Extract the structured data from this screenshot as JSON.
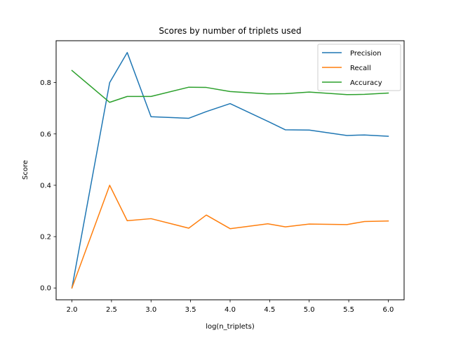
{
  "chart_data": {
    "type": "line",
    "title": "Scores by number of triplets used",
    "xlabel": "log(n_triplets)",
    "ylabel": "Score",
    "xlim": [
      1.8,
      6.2
    ],
    "ylim": [
      -0.046,
      0.963
    ],
    "xticks": [
      "2.0",
      "2.5",
      "3.0",
      "3.5",
      "4.0",
      "4.5",
      "5.0",
      "5.5",
      "6.0"
    ],
    "yticks": [
      "0.0",
      "0.2",
      "0.4",
      "0.6",
      "0.8"
    ],
    "grid": false,
    "legend_position": "top-right",
    "x": [
      2.0,
      2.477,
      2.699,
      3.0,
      3.477,
      3.699,
      4.0,
      4.477,
      4.699,
      5.0,
      5.477,
      5.699,
      6.0
    ],
    "series": [
      {
        "name": "Precision",
        "color": "#1f77b4",
        "values": [
          0.0,
          0.8,
          0.917,
          0.667,
          0.661,
          0.687,
          0.718,
          0.649,
          0.616,
          0.615,
          0.594,
          0.596,
          0.591
        ]
      },
      {
        "name": "Recall",
        "color": "#ff7f0e",
        "values": [
          0.0,
          0.4,
          0.262,
          0.27,
          0.233,
          0.284,
          0.231,
          0.25,
          0.238,
          0.249,
          0.247,
          0.259,
          0.261
        ]
      },
      {
        "name": "Accuracy",
        "color": "#2ca02c",
        "values": [
          0.847,
          0.723,
          0.746,
          0.746,
          0.782,
          0.781,
          0.765,
          0.756,
          0.757,
          0.763,
          0.753,
          0.754,
          0.759
        ]
      }
    ]
  }
}
